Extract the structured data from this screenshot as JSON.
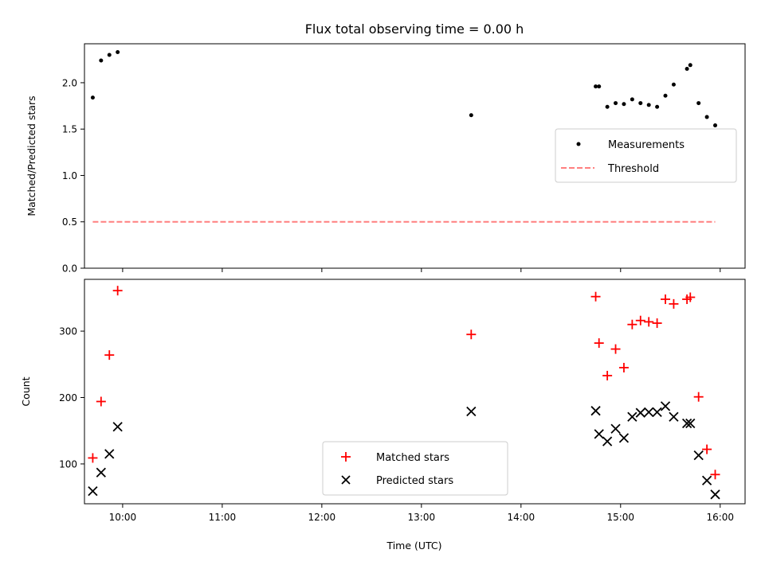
{
  "chart_data": [
    {
      "type": "scatter",
      "title": "Flux total observing time = 0.00 h",
      "xlabel": "",
      "ylabel": "Matched/Predicted stars",
      "xlim": [
        "09:37",
        "16:15"
      ],
      "ylim": [
        0.0,
        2.42
      ],
      "x_ticks": [
        "10:00",
        "11:00",
        "12:00",
        "13:00",
        "14:00",
        "15:00",
        "16:00"
      ],
      "y_ticks": [
        {
          "value": 0.0,
          "label": "0.0"
        },
        {
          "value": 0.5,
          "label": "0.5"
        },
        {
          "value": 1.0,
          "label": "1.0"
        },
        {
          "value": 1.5,
          "label": "1.5"
        },
        {
          "value": 2.0,
          "label": "2.0"
        }
      ],
      "legend_position": "center-right",
      "series": [
        {
          "name": "Measurements",
          "marker": "dot",
          "color": "#000000",
          "points": [
            [
              "09:42",
              1.84
            ],
            [
              "09:47",
              2.24
            ],
            [
              "09:52",
              2.3
            ],
            [
              "09:57",
              2.33
            ],
            [
              "13:30",
              1.65
            ],
            [
              "14:45",
              1.96
            ],
            [
              "14:47",
              1.96
            ],
            [
              "14:52",
              1.74
            ],
            [
              "14:57",
              1.78
            ],
            [
              "15:02",
              1.77
            ],
            [
              "15:07",
              1.82
            ],
            [
              "15:12",
              1.78
            ],
            [
              "15:17",
              1.76
            ],
            [
              "15:22",
              1.74
            ],
            [
              "15:27",
              1.86
            ],
            [
              "15:32",
              1.98
            ],
            [
              "15:40",
              2.15
            ],
            [
              "15:42",
              2.19
            ],
            [
              "15:47",
              1.78
            ],
            [
              "15:52",
              1.63
            ],
            [
              "15:57",
              1.54
            ]
          ]
        },
        {
          "name": "Threshold",
          "type": "line",
          "style": "dashed",
          "color": "#ff7f7f",
          "points": [
            [
              "09:42",
              0.5
            ],
            [
              "15:57",
              0.5
            ]
          ]
        }
      ]
    },
    {
      "type": "scatter",
      "title": "",
      "xlabel": "Time (UTC)",
      "ylabel": "Count",
      "xlim": [
        "09:37",
        "16:15"
      ],
      "ylim": [
        40,
        378
      ],
      "x_ticks": [
        "10:00",
        "11:00",
        "12:00",
        "13:00",
        "14:00",
        "15:00",
        "16:00"
      ],
      "y_ticks": [
        {
          "value": 100,
          "label": "100"
        },
        {
          "value": 200,
          "label": "200"
        },
        {
          "value": 300,
          "label": "300"
        }
      ],
      "legend_position": "lower-center",
      "series": [
        {
          "name": "Matched stars",
          "marker": "plus",
          "color": "#ff0000",
          "points": [
            [
              "09:42",
              109
            ],
            [
              "09:47",
              194
            ],
            [
              "09:52",
              264
            ],
            [
              "09:57",
              361
            ],
            [
              "13:30",
              295
            ],
            [
              "14:45",
              352
            ],
            [
              "14:47",
              282
            ],
            [
              "14:52",
              233
            ],
            [
              "14:57",
              273
            ],
            [
              "15:02",
              245
            ],
            [
              "15:07",
              310
            ],
            [
              "15:12",
              316
            ],
            [
              "15:17",
              314
            ],
            [
              "15:22",
              312
            ],
            [
              "15:27",
              348
            ],
            [
              "15:32",
              341
            ],
            [
              "15:40",
              348
            ],
            [
              "15:42",
              351
            ],
            [
              "15:47",
              201
            ],
            [
              "15:52",
              122
            ],
            [
              "15:57",
              84
            ]
          ]
        },
        {
          "name": "Predicted stars",
          "marker": "x",
          "color": "#000000",
          "points": [
            [
              "09:42",
              59
            ],
            [
              "09:47",
              87
            ],
            [
              "09:52",
              115
            ],
            [
              "09:57",
              156
            ],
            [
              "13:30",
              179
            ],
            [
              "14:45",
              180
            ],
            [
              "14:47",
              145
            ],
            [
              "14:52",
              134
            ],
            [
              "14:57",
              153
            ],
            [
              "15:02",
              139
            ],
            [
              "15:07",
              171
            ],
            [
              "15:12",
              177
            ],
            [
              "15:17",
              178
            ],
            [
              "15:22",
              178
            ],
            [
              "15:27",
              187
            ],
            [
              "15:32",
              171
            ],
            [
              "15:40",
              161
            ],
            [
              "15:42",
              161
            ],
            [
              "15:47",
              113
            ],
            [
              "15:52",
              75
            ],
            [
              "15:57",
              54
            ]
          ]
        }
      ]
    }
  ]
}
